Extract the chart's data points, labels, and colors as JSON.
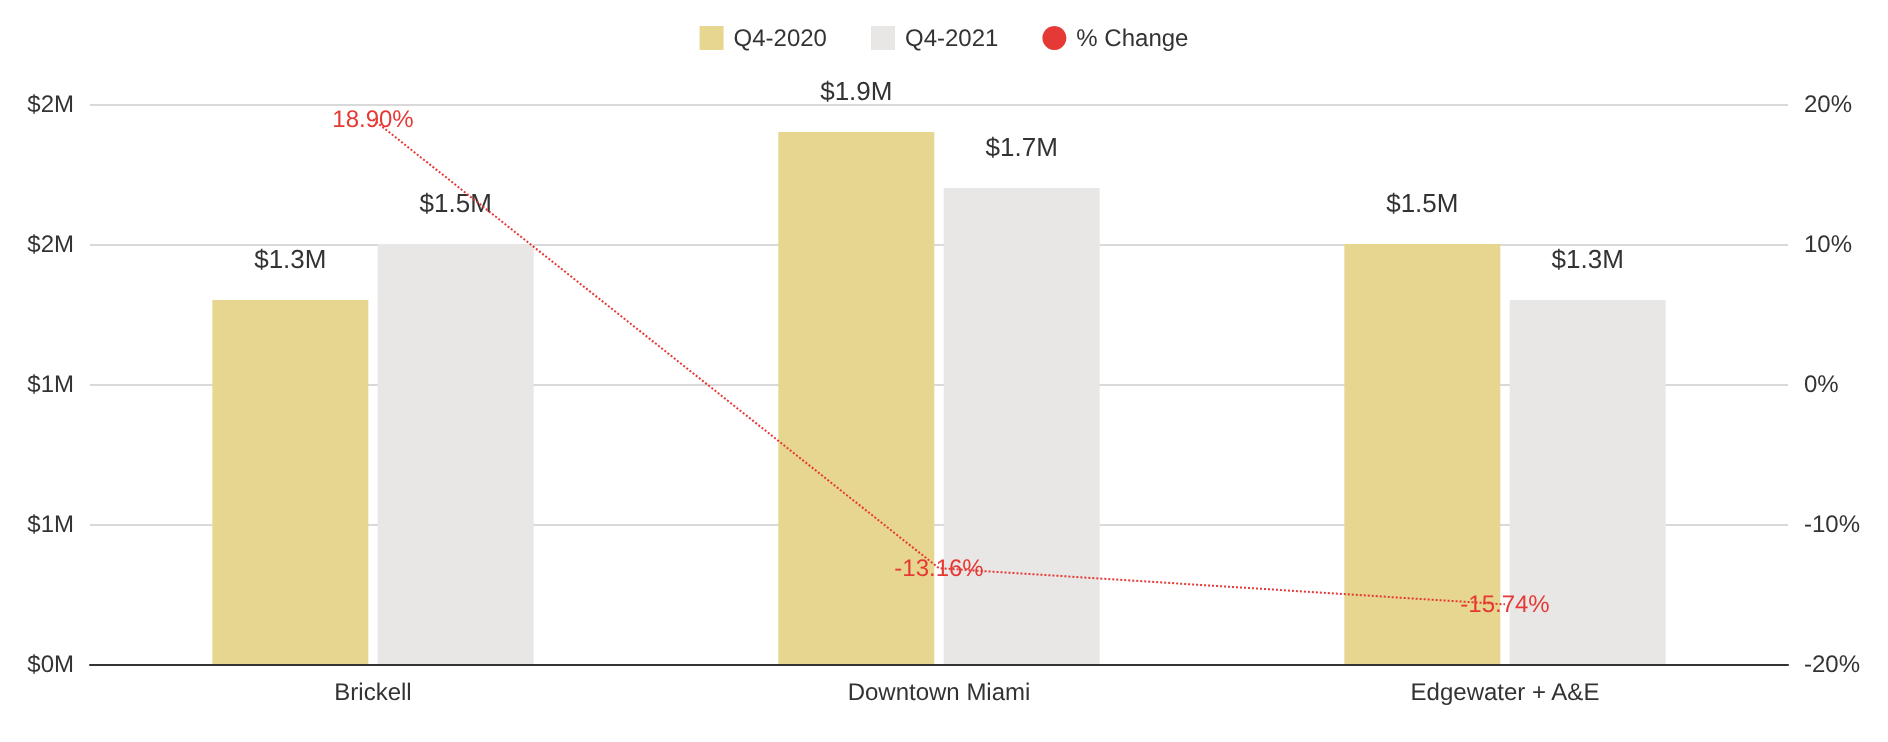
{
  "chart_data": {
    "type": "bar",
    "categories": [
      "Brickell",
      "Downtown Miami",
      "Edgewater + A&E"
    ],
    "series": [
      {
        "name": "Q4-2020",
        "color": "#e6d68f",
        "values": [
          1.3,
          1.9,
          1.5
        ],
        "value_labels": [
          "$1.3M",
          "$1.9M",
          "$1.5M"
        ]
      },
      {
        "name": "Q4-2021",
        "color": "#e8e7e5",
        "values": [
          1.5,
          1.7,
          1.3
        ],
        "value_labels": [
          "$1.5M",
          "$1.7M",
          "$1.3M"
        ]
      },
      {
        "name": "% Change",
        "type": "line",
        "axis": "y2",
        "color": "#e53935",
        "line_style": "dotted",
        "marker": "none",
        "values": [
          18.9,
          -13.16,
          -15.74
        ],
        "value_labels": [
          "18.90%",
          "-13.16%",
          "-15.74%"
        ]
      }
    ],
    "ylim": [
      0,
      2
    ],
    "yticks": [
      {
        "value": 0,
        "label": "$0M"
      },
      {
        "value": 0.5,
        "label": "$1M"
      },
      {
        "value": 1,
        "label": "$1M"
      },
      {
        "value": 1.5,
        "label": "$2M"
      },
      {
        "value": 2,
        "label": "$2M"
      }
    ],
    "y2lim": [
      -20,
      20
    ],
    "y2ticks": [
      {
        "value": -20,
        "label": "-20%"
      },
      {
        "value": -10,
        "label": "-10%"
      },
      {
        "value": 0,
        "label": "0%"
      },
      {
        "value": 10,
        "label": "10%"
      },
      {
        "value": 20,
        "label": "20%"
      }
    ],
    "grid": "y",
    "legend": "top"
  }
}
